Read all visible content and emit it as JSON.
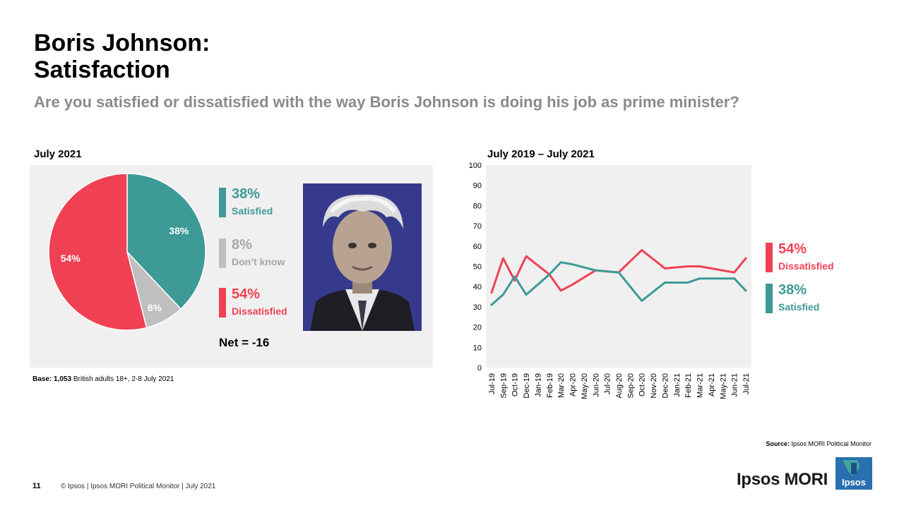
{
  "title": {
    "line1": "Boris Johnson:",
    "line2": "Satisfaction"
  },
  "subtitle": "Are you satisfied or dissatisfied with the way Boris Johnson is doing his job as prime minister?",
  "colors": {
    "satisfied": "#3d9a96",
    "dont_know": "#bfbfbf",
    "dissatisfied": "#f04154",
    "panel_bg": "#f0f0f0",
    "photo_bg": "#363a8c",
    "brand": "#2a6fb0"
  },
  "left_panel": {
    "label": "July 2021",
    "legend": [
      {
        "pct": "38%",
        "text": "Satisfied"
      },
      {
        "pct": "8%",
        "text": "Don’t know"
      },
      {
        "pct": "54%",
        "text": "Dissatisfied"
      }
    ],
    "net": "Net = -16",
    "base": {
      "label": "Base:",
      "count": "1,053",
      "text": " British adults 18+, 2-8 July 2021"
    }
  },
  "right_panel": {
    "label": "July 2019 – July 2021",
    "legend": [
      {
        "pct": "54%",
        "text": "Dissatisfied"
      },
      {
        "pct": "38%",
        "text": "Satisfied"
      }
    ]
  },
  "chart_data": [
    {
      "type": "pie",
      "title": "July 2021",
      "categories": [
        "Satisfied",
        "Don’t know",
        "Dissatisfied"
      ],
      "values": [
        38,
        8,
        54
      ],
      "labels": [
        "38%",
        "8%",
        "54%"
      ]
    },
    {
      "type": "line",
      "title": "July 2019 – July 2021",
      "categories": [
        "Jul-19",
        "Sep-19",
        "Oct-19",
        "Dec-19",
        "Jan-19",
        "Feb-19",
        "Mar-20",
        "Apr-20",
        "May-20",
        "Jun-20",
        "Jul-20",
        "Aug-20",
        "Sep-20",
        "Oct-20",
        "Nov-20",
        "Dec-20",
        "Jan-21",
        "Feb-21",
        "Mar-21",
        "Apr-21",
        "May-21",
        "Jun-21",
        "Jul-21"
      ],
      "x_positions": [
        0,
        1,
        2,
        3,
        4,
        5,
        6,
        7,
        8,
        9,
        10,
        11,
        12,
        13,
        14,
        15,
        16,
        17,
        18,
        19,
        20,
        21,
        22
      ],
      "series": [
        {
          "name": "Dissatisfied",
          "points": [
            [
              0,
              37
            ],
            [
              1,
              54
            ],
            [
              2,
              43
            ],
            [
              3,
              55
            ],
            [
              5,
              46
            ],
            [
              6,
              38
            ],
            [
              7,
              41
            ],
            [
              9,
              48
            ],
            [
              11,
              47
            ],
            [
              13,
              58
            ],
            [
              15,
              49
            ],
            [
              17,
              50
            ],
            [
              18,
              50
            ],
            [
              19,
              49
            ],
            [
              21,
              47
            ],
            [
              22,
              54
            ]
          ]
        },
        {
          "name": "Satisfied",
          "points": [
            [
              0,
              31
            ],
            [
              1,
              36
            ],
            [
              2,
              45
            ],
            [
              3,
              36
            ],
            [
              5,
              46
            ],
            [
              6,
              52
            ],
            [
              7,
              51
            ],
            [
              9,
              48
            ],
            [
              11,
              47
            ],
            [
              13,
              33
            ],
            [
              15,
              42
            ],
            [
              17,
              42
            ],
            [
              18,
              44
            ],
            [
              19,
              44
            ],
            [
              21,
              44
            ],
            [
              22,
              38
            ]
          ]
        }
      ],
      "yticks": [
        "0",
        "10",
        "20",
        "30",
        "40",
        "50",
        "60",
        "70",
        "80",
        "90",
        "100"
      ],
      "ylim": [
        0,
        100
      ]
    }
  ],
  "source": {
    "label": "Source:",
    "text": " Ipsos MORI Political Monitor"
  },
  "footer": {
    "page": "11",
    "text": "© Ipsos | Ipsos MORI  Political Monitor | July 2021"
  },
  "brand": {
    "name": "Ipsos MORI",
    "logo_text": "Ipsos"
  }
}
